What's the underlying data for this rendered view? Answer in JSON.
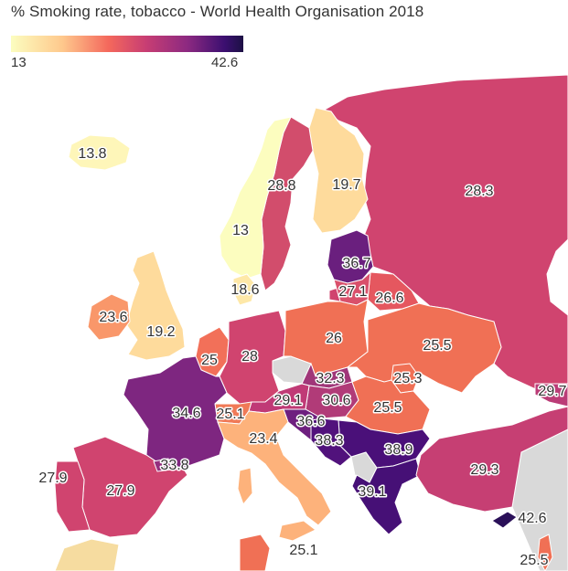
{
  "title": "% Smoking rate, tobacco - World Health Organisation 2018",
  "legend": {
    "min": "13",
    "max": "42.6"
  },
  "countries": [
    {
      "name": "Iceland",
      "value": "13.8",
      "color": "#fef6b9"
    },
    {
      "name": "Norway",
      "value": "13",
      "color": "#fcfdbf"
    },
    {
      "name": "Sweden",
      "value": "28.8",
      "color": "#d24d6c"
    },
    {
      "name": "Finland",
      "value": "19.7",
      "color": "#fedb9c"
    },
    {
      "name": "Russia",
      "value": "28.3",
      "color": "#d0446f"
    },
    {
      "name": "Belarus",
      "value": "36.7",
      "color": "#6a1f7e"
    },
    {
      "name": "Lithuania",
      "value": "27.1",
      "color": "#d9506b"
    },
    {
      "name": "Latvia",
      "value": "26.6",
      "color": "#e5575f"
    },
    {
      "name": "Denmark",
      "value": "18.6",
      "color": "#fee8a8"
    },
    {
      "name": "United Kingdom",
      "value": "19.2",
      "color": "#fedb9c"
    },
    {
      "name": "Ireland",
      "value": "23.6",
      "color": "#f9976a"
    },
    {
      "name": "Netherlands",
      "value": "25",
      "color": "#f27059"
    },
    {
      "name": "Germany",
      "value": "28",
      "color": "#d0446f"
    },
    {
      "name": "Poland",
      "value": "26",
      "color": "#f07055"
    },
    {
      "name": "Ukraine",
      "value": "25.5",
      "color": "#f07055"
    },
    {
      "name": "Slovakia",
      "value": "32.3",
      "color": "#a03679"
    },
    {
      "name": "Hungary",
      "value": "30.6",
      "color": "#b13b78"
    },
    {
      "name": "Moldova",
      "value": "25.3",
      "color": "#f07055"
    },
    {
      "name": "Romania",
      "value": "25.5",
      "color": "#f07055"
    },
    {
      "name": "France",
      "value": "34.6",
      "color": "#7e2680"
    },
    {
      "name": "Switzerland",
      "value": "25.1",
      "color": "#f07a57"
    },
    {
      "name": "Austria",
      "value": "29.1",
      "color": "#c03a76"
    },
    {
      "name": "Croatia",
      "value": "36.6",
      "color": "#6e1f7f"
    },
    {
      "name": "Bosnia",
      "value": "38.3",
      "color": "#51127c"
    },
    {
      "name": "Serbia",
      "value": "38.9",
      "color": "#4a1079"
    },
    {
      "name": "Greece",
      "value": "39.1",
      "color": "#461076"
    },
    {
      "name": "Italy",
      "value": "23.4",
      "color": "#fdb27b"
    },
    {
      "name": "Spain",
      "value": "27.9",
      "color": "#d0446f"
    },
    {
      "name": "Portugal",
      "value": "27.9",
      "color": "#d0446f"
    },
    {
      "name": "Andorra",
      "value": "33.8",
      "color": "#942e7e"
    },
    {
      "name": "Turkey",
      "value": "29.3",
      "color": "#c63f73"
    },
    {
      "name": "Georgia",
      "value": "29.7",
      "color": "#bb3c77"
    },
    {
      "name": "Cyprus",
      "value": "42.6",
      "color": "#2a1058"
    },
    {
      "name": "Malta",
      "value": "25.1",
      "color": "#f6dca0"
    },
    {
      "name": "Israel",
      "value": "25.5",
      "color": "#f07055"
    }
  ]
}
